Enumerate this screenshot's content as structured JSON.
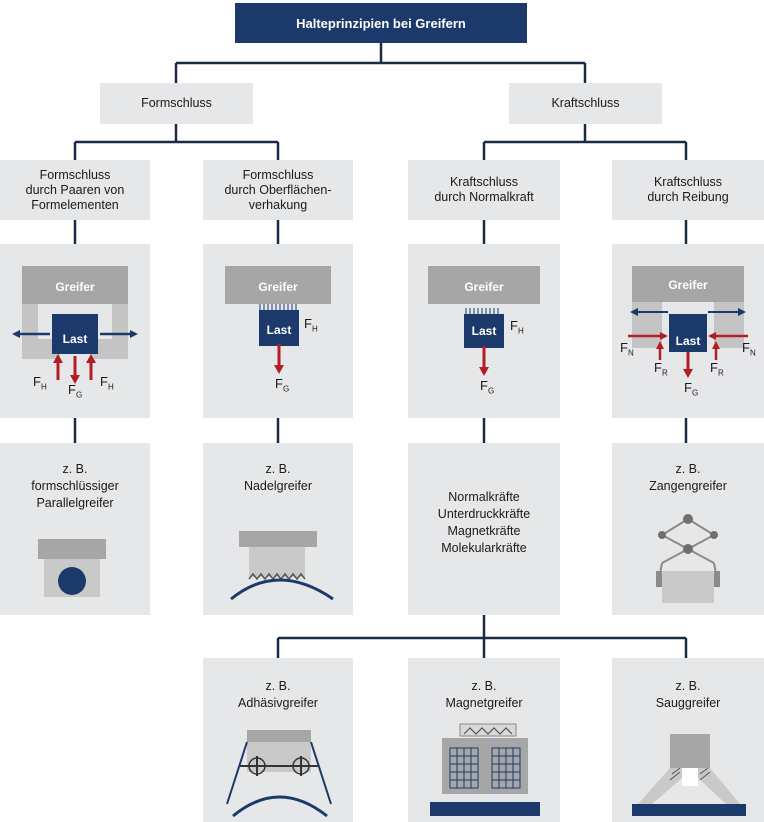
{
  "title": "Halteprinzipien bei Greifern",
  "categories": {
    "form": "Formschluss",
    "kraft": "Kraftschluss"
  },
  "subcategories": [
    "Formschluss\ndurch Paaren von\nFormelementen",
    "Formschluss\ndurch Oberflächen-\nverhakung",
    "Kraftschluss\ndurch Normalkraft",
    "Kraftschluss\ndurch Reibung"
  ],
  "diagram_labels": {
    "greifer": "Greifer",
    "last": "Last"
  },
  "force_labels": {
    "FH": "F",
    "FH_sub": "H",
    "FG": "F",
    "FG_sub": "G",
    "FN": "F",
    "FN_sub": "N",
    "FR": "F",
    "FR_sub": "R"
  },
  "examples": [
    "z. B.\nformschlüssiger\nParallelgreifer",
    "z. B.\nNadelgreifer",
    "Normalkräfte\nUnterdruckkräfte\nMagnetkräfte\nMolekularkräfte",
    "z. B.\nZangengreifer"
  ],
  "bottom_examples": [
    "z. B.\nAdhäsivgreifer",
    "z. B.\nMagnetgreifer",
    "z. B.\nSauggreifer"
  ],
  "colors": {
    "navy": "#1b3a6b",
    "panel": "#e6e7e9",
    "gripper_gray": "#a6a6a6",
    "force_red": "#b11f24"
  }
}
